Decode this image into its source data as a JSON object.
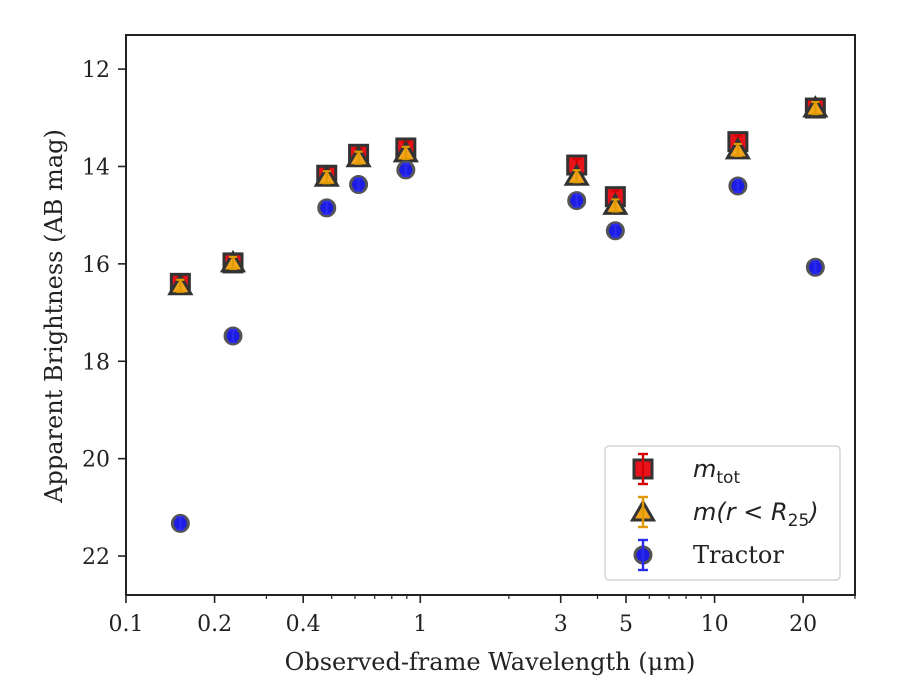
{
  "chart_data": {
    "type": "scatter",
    "xlabel": "Observed-frame Wavelength (μm)",
    "ylabel": "Apparent Brightness (AB mag)",
    "x_scale": "log",
    "xlim": [
      0.1,
      30
    ],
    "ylim": [
      22.8,
      11.3
    ],
    "y_inverted": true,
    "x_ticks": [
      {
        "value": 0.1,
        "label": "0.1"
      },
      {
        "value": 0.2,
        "label": "0.2"
      },
      {
        "value": 0.4,
        "label": "0.4"
      },
      {
        "value": 1,
        "label": "1"
      },
      {
        "value": 3,
        "label": "3"
      },
      {
        "value": 5,
        "label": "5"
      },
      {
        "value": 10,
        "label": "10"
      },
      {
        "value": 20,
        "label": "20"
      }
    ],
    "y_ticks": [
      {
        "value": 12,
        "label": "12"
      },
      {
        "value": 14,
        "label": "14"
      },
      {
        "value": 16,
        "label": "16"
      },
      {
        "value": 18,
        "label": "18"
      },
      {
        "value": 20,
        "label": "20"
      },
      {
        "value": 22,
        "label": "22"
      }
    ],
    "grid": false,
    "legend_position": "lower right",
    "series": [
      {
        "name": "m_tot",
        "marker": "square",
        "color": "#e8121b",
        "errcolor": "#d40000",
        "x": [
          0.153,
          0.231,
          0.481,
          0.617,
          0.893,
          3.4,
          4.6,
          12.0,
          22.0
        ],
        "y": [
          16.4,
          15.98,
          14.18,
          13.75,
          13.62,
          13.97,
          14.62,
          13.49,
          12.8
        ]
      },
      {
        "name": "m(r < R_25)",
        "marker": "triangle",
        "color": "#f2a51a",
        "errcolor": "#e09a00",
        "x": [
          0.153,
          0.231,
          0.481,
          0.617,
          0.893,
          3.4,
          4.6,
          12.0,
          22.0
        ],
        "y": [
          16.45,
          15.98,
          14.22,
          13.82,
          13.72,
          14.2,
          14.8,
          13.66,
          12.8
        ]
      },
      {
        "name": "Tractor",
        "marker": "circle",
        "color": "#1010e0",
        "errcolor": "#2b2bf0",
        "x": [
          0.153,
          0.231,
          0.481,
          0.617,
          0.893,
          3.4,
          4.6,
          12.0,
          22.0
        ],
        "y": [
          21.33,
          17.48,
          14.85,
          14.37,
          14.07,
          14.7,
          15.32,
          14.4,
          16.07
        ]
      }
    ],
    "legend": [
      {
        "marker": "square",
        "math": "m",
        "sub": "tot",
        "rest": ""
      },
      {
        "marker": "triangle",
        "math": "m(r < R",
        "sub": "25",
        "rest": ")"
      },
      {
        "marker": "circle",
        "text": "Tractor"
      }
    ]
  }
}
